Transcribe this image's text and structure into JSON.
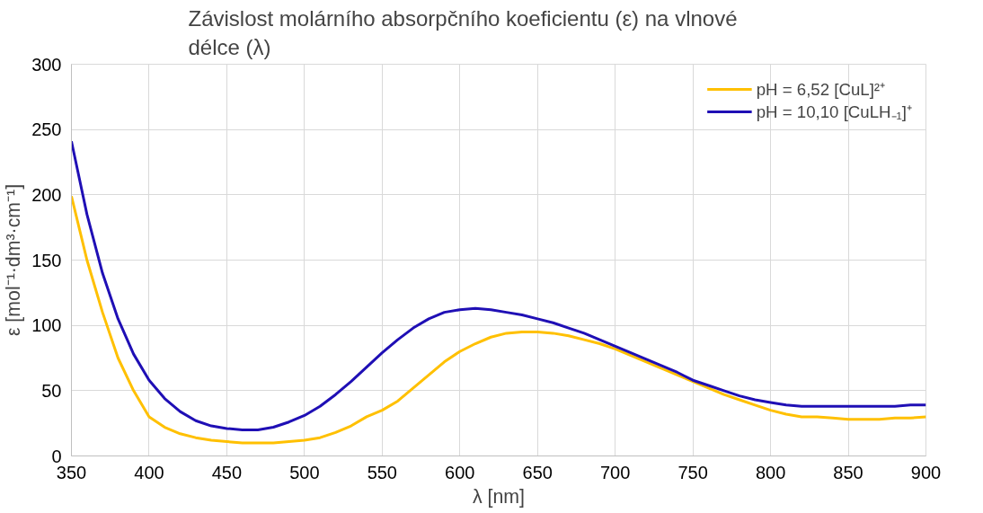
{
  "chart_data": {
    "type": "line",
    "title": "Závislost molárního absorpčního koeficientu (ε) na vlnové délce (λ)",
    "xlabel": "λ [nm]",
    "ylabel": "ε [mol⁻¹·dm³·cm⁻¹]",
    "x": [
      350,
      360,
      370,
      380,
      390,
      400,
      410,
      420,
      430,
      440,
      450,
      460,
      470,
      480,
      490,
      500,
      510,
      520,
      530,
      540,
      550,
      560,
      570,
      580,
      590,
      600,
      610,
      620,
      630,
      640,
      650,
      660,
      670,
      680,
      690,
      700,
      710,
      720,
      730,
      740,
      750,
      760,
      770,
      780,
      790,
      800,
      810,
      820,
      830,
      840,
      850,
      860,
      870,
      880,
      890,
      900
    ],
    "series": [
      {
        "name": "pH = 6,52 [CuL]²⁺",
        "color": "#ffc000",
        "values": [
          199,
          150,
          110,
          75,
          50,
          30,
          22,
          17,
          14,
          12,
          11,
          10,
          10,
          10,
          11,
          12,
          14,
          18,
          23,
          30,
          35,
          42,
          52,
          62,
          72,
          80,
          86,
          91,
          94,
          95,
          95,
          94,
          92,
          89,
          86,
          82,
          77,
          72,
          67,
          62,
          57,
          52,
          47,
          43,
          39,
          35,
          32,
          30,
          30,
          29,
          28,
          28,
          28,
          29,
          29,
          30
        ]
      },
      {
        "name": "pH = 10,10 [CuLH₋₁]⁺",
        "color": "#1f0fb5",
        "values": [
          241,
          185,
          140,
          105,
          78,
          58,
          44,
          34,
          27,
          23,
          21,
          20,
          20,
          22,
          26,
          31,
          38,
          47,
          57,
          68,
          79,
          89,
          98,
          105,
          110,
          112,
          113,
          112,
          110,
          108,
          105,
          102,
          98,
          94,
          89,
          84,
          79,
          74,
          69,
          64,
          58,
          54,
          50,
          46,
          43,
          41,
          39,
          38,
          38,
          38,
          38,
          38,
          38,
          38,
          39,
          39
        ]
      }
    ],
    "xlim": [
      350,
      900
    ],
    "ylim": [
      0,
      300
    ],
    "xticks": [
      350,
      400,
      450,
      500,
      550,
      600,
      650,
      700,
      750,
      800,
      850,
      900
    ],
    "yticks": [
      0,
      50,
      100,
      150,
      200,
      250,
      300
    ],
    "grid": true,
    "legend": "top right",
    "line_style": "solid"
  }
}
